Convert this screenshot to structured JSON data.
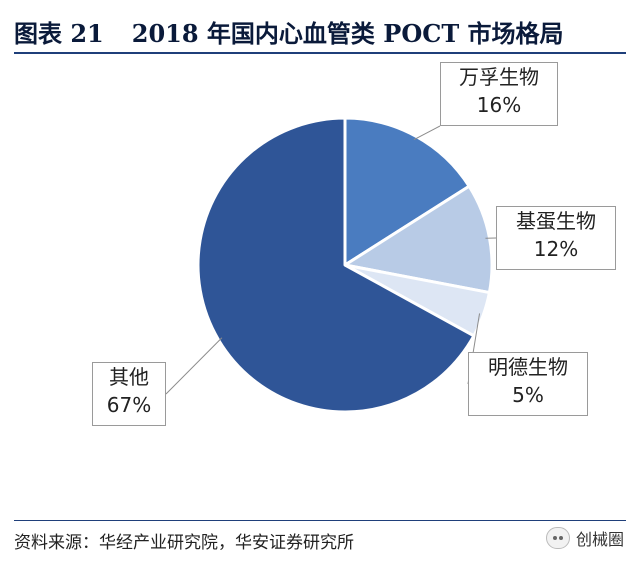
{
  "figure": {
    "number": "图表 21",
    "title": "2018 年国内心血管类 POCT 市场格局"
  },
  "chart_data": {
    "type": "pie",
    "title": "2018 年国内心血管类 POCT 市场格局",
    "unit": "%",
    "slices": [
      {
        "label": "万孚生物",
        "value": 16,
        "value_text": "16%",
        "color": "#4a7cc0"
      },
      {
        "label": "基蛋生物",
        "value": 12,
        "value_text": "12%",
        "color": "#b8cbe6"
      },
      {
        "label": "明德生物",
        "value": 5,
        "value_text": "5%",
        "color": "#dde6f4"
      },
      {
        "label": "其他",
        "value": 67,
        "value_text": "67%",
        "color": "#2f5597"
      }
    ],
    "start_angle": "12 o'clock",
    "direction": "clockwise"
  },
  "source": "资料来源：华经产业研究院，华安证券研究所",
  "watermark": {
    "text": "创械圈",
    "icon": "wechat-icon"
  }
}
